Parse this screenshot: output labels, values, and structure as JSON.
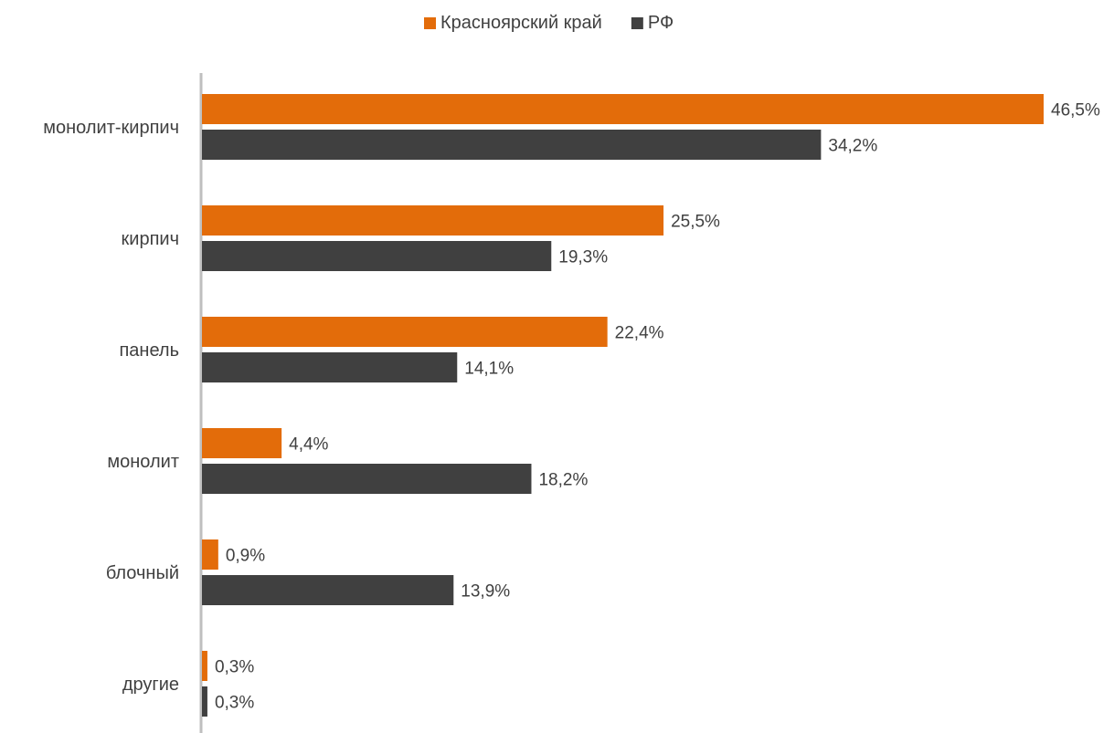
{
  "chart_data": {
    "type": "bar",
    "orientation": "horizontal",
    "categories": [
      "монолит-кирпич",
      "кирпич",
      "панель",
      "монолит",
      "блочный",
      "другие"
    ],
    "series": [
      {
        "name": "Красноярский край",
        "color": "#e36c0a",
        "values": [
          46.5,
          25.5,
          22.4,
          4.4,
          0.9,
          0.3
        ],
        "labels": [
          "46,5%",
          "25,5%",
          "22,4%",
          "4,4%",
          "0,9%",
          "0,3%"
        ]
      },
      {
        "name": "РФ",
        "color": "#404040",
        "values": [
          34.2,
          19.3,
          14.1,
          18.2,
          13.9,
          0.3
        ],
        "labels": [
          "34,2%",
          "19,3%",
          "14,1%",
          "18,2%",
          "13,9%",
          "0,3%"
        ]
      }
    ],
    "legend_position": "top",
    "grid": false,
    "xlim": [
      0,
      46.5
    ]
  }
}
